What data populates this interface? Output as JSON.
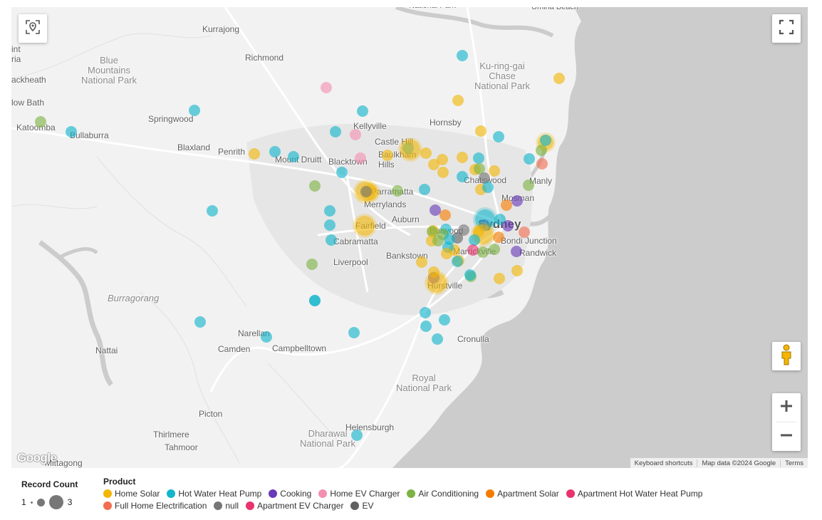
{
  "map": {
    "places": [
      {
        "name": "National Park",
        "cls": "sm"
      },
      {
        "name": "Umina Beach",
        "cls": "sm"
      },
      {
        "name": "Kurrajong",
        "cls": ""
      },
      {
        "name": "Richmond",
        "cls": ""
      },
      {
        "name": "Blue\nMountains\nNational Park",
        "cls": "park"
      },
      {
        "name": "ackheath",
        "cls": ""
      },
      {
        "name": "low Bath",
        "cls": ""
      },
      {
        "name": "Katoomba",
        "cls": ""
      },
      {
        "name": "Bullaburra",
        "cls": ""
      },
      {
        "name": "Springwood",
        "cls": ""
      },
      {
        "name": "Blaxland",
        "cls": ""
      },
      {
        "name": "Penrith",
        "cls": ""
      },
      {
        "name": "Mount Druitt",
        "cls": ""
      },
      {
        "name": "Blacktown",
        "cls": ""
      },
      {
        "name": "Kellyville",
        "cls": ""
      },
      {
        "name": "Castle Hill",
        "cls": ""
      },
      {
        "name": "Baulkham\nHills",
        "cls": ""
      },
      {
        "name": "Hornsby",
        "cls": ""
      },
      {
        "name": "Ku-ring-gai\nChase\nNational Park",
        "cls": "park"
      },
      {
        "name": "Chatswood",
        "cls": ""
      },
      {
        "name": "Manly",
        "cls": ""
      },
      {
        "name": "Mosman",
        "cls": ""
      },
      {
        "name": "Parramatta",
        "cls": ""
      },
      {
        "name": "Merrylands",
        "cls": ""
      },
      {
        "name": "Auburn",
        "cls": ""
      },
      {
        "name": "Fairfield",
        "cls": ""
      },
      {
        "name": "Cabramatta",
        "cls": ""
      },
      {
        "name": "Sydney",
        "cls": "big"
      },
      {
        "name": "Burwood",
        "cls": ""
      },
      {
        "name": "Bondi Junction",
        "cls": ""
      },
      {
        "name": "Marrickville",
        "cls": ""
      },
      {
        "name": "Randwick",
        "cls": ""
      },
      {
        "name": "Bankstown",
        "cls": ""
      },
      {
        "name": "Liverpool",
        "cls": ""
      },
      {
        "name": "Hurstville",
        "cls": ""
      },
      {
        "name": "Burragorang",
        "cls": "water"
      },
      {
        "name": "Narellan",
        "cls": ""
      },
      {
        "name": "Camden",
        "cls": ""
      },
      {
        "name": "Campbelltown",
        "cls": ""
      },
      {
        "name": "Cronulla",
        "cls": ""
      },
      {
        "name": "Nattai",
        "cls": ""
      },
      {
        "name": "Royal\nNational Park",
        "cls": "park"
      },
      {
        "name": "Picton",
        "cls": ""
      },
      {
        "name": "Thirlmere",
        "cls": ""
      },
      {
        "name": "Tahmoor",
        "cls": ""
      },
      {
        "name": "Dharawal\nNational Park",
        "cls": "park"
      },
      {
        "name": "Helensburgh",
        "cls": ""
      },
      {
        "name": "Mittagong",
        "cls": ""
      },
      {
        "name": "int\nria",
        "cls": ""
      }
    ],
    "attribution": [
      "Keyboard shortcuts",
      "Map data ©2024 Google",
      "Terms"
    ],
    "google_logo": "Google"
  },
  "icons": {
    "locate": "location-pin-icon",
    "fullscreen": "fullscreen-icon",
    "pegman": "street-view-pegman-icon",
    "zoom_in": "plus-icon",
    "zoom_out": "minus-icon"
  },
  "colors": {
    "Home Solar": "#f2b705",
    "Hot Water Heat Pump": "#12b5cb",
    "Cooking": "#673ab7",
    "Home EV Charger": "#f48fb1",
    "Air Conditioning": "#7cb342",
    "Apartment Solar": "#f57c00",
    "Apartment Hot Water Heat Pump": "#e8336d",
    "Full Home Electrification": "#f26d4f",
    "null": "#757575",
    "EV": "#616161"
  },
  "points": [
    {
      "p": "Hot Water Heat Pump",
      "c": 1
    },
    {
      "p": "Home EV Charger",
      "c": 1
    },
    {
      "p": "Home Solar",
      "c": 1
    },
    {
      "p": "Home Solar",
      "c": 1
    },
    {
      "p": "Hot Water Heat Pump",
      "c": 1
    },
    {
      "p": "Air Conditioning",
      "c": 1
    },
    {
      "p": "Hot Water Heat Pump",
      "c": 1
    },
    {
      "p": "Hot Water Heat Pump",
      "c": 1
    },
    {
      "p": "Hot Water Heat Pump",
      "c": 1
    },
    {
      "p": "Hot Water Heat Pump",
      "c": 1
    },
    {
      "p": "Home EV Charger",
      "c": 1
    },
    {
      "p": "Home Solar",
      "c": 1
    },
    {
      "p": "Hot Water Heat Pump",
      "c": 1
    },
    {
      "p": "Hot Water Heat Pump",
      "c": 1
    },
    {
      "p": "Home EV Charger",
      "c": 1
    },
    {
      "p": "Home Solar",
      "c": 2
    },
    {
      "p": "Hot Water Heat Pump",
      "c": 1
    },
    {
      "p": "Home Solar",
      "c": 1
    },
    {
      "p": "Home Solar",
      "c": 1
    },
    {
      "p": "Air Conditioning",
      "c": 1
    },
    {
      "p": "Hot Water Heat Pump",
      "c": 1
    },
    {
      "p": "Home Solar",
      "c": 3
    },
    {
      "p": "null",
      "c": 1
    },
    {
      "p": "Air Conditioning",
      "c": 1
    },
    {
      "p": "Hot Water Heat Pump",
      "c": 1
    },
    {
      "p": "Home Solar",
      "c": 3
    },
    {
      "p": "Hot Water Heat Pump",
      "c": 1
    },
    {
      "p": "Hot Water Heat Pump",
      "c": 1
    },
    {
      "p": "Air Conditioning",
      "c": 1
    },
    {
      "p": "Hot Water Heat Pump",
      "c": 1
    },
    {
      "p": "Hot Water Heat Pump",
      "c": 1
    },
    {
      "p": "Home Solar",
      "c": 1
    },
    {
      "p": "Home Solar",
      "c": 1
    },
    {
      "p": "Home Solar",
      "c": 1
    },
    {
      "p": "Home Solar",
      "c": 1
    },
    {
      "p": "Hot Water Heat Pump",
      "c": 1
    },
    {
      "p": "Home Solar",
      "c": 1
    },
    {
      "p": "Home Solar",
      "c": 1
    },
    {
      "p": "Home Solar",
      "c": 1
    },
    {
      "p": "Hot Water Heat Pump",
      "c": 1
    },
    {
      "p": "Air Conditioning",
      "c": 1
    },
    {
      "p": "null",
      "c": 1
    },
    {
      "p": "Home Solar",
      "c": 1
    },
    {
      "p": "Apartment Solar",
      "c": 1
    },
    {
      "p": "Hot Water Heat Pump",
      "c": 1
    },
    {
      "p": "Hot Water Heat Pump",
      "c": 1
    },
    {
      "p": "Hot Water Heat Pump",
      "c": 1
    },
    {
      "p": "Home Solar",
      "c": 2
    },
    {
      "p": "Hot Water Heat Pump",
      "c": 1
    },
    {
      "p": "Air Conditioning",
      "c": 1
    },
    {
      "p": "Full Home Electrification",
      "c": 1
    },
    {
      "p": "Air Conditioning",
      "c": 1
    },
    {
      "p": "Hot Water Heat Pump",
      "c": 1
    },
    {
      "p": "Cooking",
      "c": 1
    },
    {
      "p": "Apartment Solar",
      "c": 1
    },
    {
      "p": "Hot Water Heat Pump",
      "c": 1
    },
    {
      "p": "Cooking",
      "c": 1
    },
    {
      "p": "Hot Water Heat Pump",
      "c": 3
    },
    {
      "p": "Cooking",
      "c": 1
    },
    {
      "p": "Home Solar",
      "c": 1
    },
    {
      "p": "Apartment Solar",
      "c": 1
    },
    {
      "p": "Cooking",
      "c": 1
    },
    {
      "p": "Home Solar",
      "c": 1
    },
    {
      "p": "Home Solar",
      "c": 3
    },
    {
      "p": "Hot Water Heat Pump",
      "c": 1
    },
    {
      "p": "Air Conditioning",
      "c": 1
    },
    {
      "p": "null",
      "c": 1
    },
    {
      "p": "EV",
      "c": 1
    },
    {
      "p": "Air Conditioning",
      "c": 1
    },
    {
      "p": "Hot Water Heat Pump",
      "c": 1
    },
    {
      "p": "Full Home Electrification",
      "c": 1
    },
    {
      "p": "Home Solar",
      "c": 1
    },
    {
      "p": "Air Conditioning",
      "c": 1
    },
    {
      "p": "Apartment Hot Water Heat Pump",
      "c": 1
    },
    {
      "p": "Air Conditioning",
      "c": 1
    },
    {
      "p": "Cooking",
      "c": 1
    },
    {
      "p": "Home Solar",
      "c": 1
    },
    {
      "p": "Home Solar",
      "c": 1
    },
    {
      "p": "Hot Water Heat Pump",
      "c": 1
    },
    {
      "p": "Hot Water Heat Pump",
      "c": 1
    },
    {
      "p": "Home Solar",
      "c": 1
    },
    {
      "p": "Hot Water Heat Pump",
      "c": 1
    },
    {
      "p": "Air Conditioning",
      "c": 1
    },
    {
      "p": "Air Conditioning",
      "c": 1
    },
    {
      "p": "Hot Water Heat Pump",
      "c": 1
    },
    {
      "p": "Home Solar",
      "c": 1
    },
    {
      "p": "Cooking",
      "c": 1
    },
    {
      "p": "Hot Water Heat Pump",
      "c": 1
    },
    {
      "p": "Home Solar",
      "c": 3
    },
    {
      "p": "Hot Water Heat Pump",
      "c": 1
    },
    {
      "p": "Hot Water Heat Pump",
      "c": 1
    },
    {
      "p": "Hot Water Heat Pump",
      "c": 1
    },
    {
      "p": "Hot Water Heat Pump",
      "c": 1
    },
    {
      "p": "Hot Water Heat Pump",
      "c": 1
    },
    {
      "p": "Hot Water Heat Pump",
      "c": 1
    },
    {
      "p": "Home Solar",
      "c": 1
    },
    {
      "p": "Home Solar",
      "c": 1
    },
    {
      "p": "Home Solar",
      "c": 1
    },
    {
      "p": "Home Solar",
      "c": 3
    },
    {
      "p": "Hot Water Heat Pump",
      "c": 1
    }
  ],
  "legend": {
    "record_count": {
      "title": "Record Count",
      "min": "1",
      "max": "3"
    },
    "product": {
      "title": "Product",
      "items": [
        "Home Solar",
        "Hot Water Heat Pump",
        "Cooking",
        "Home EV Charger",
        "Air Conditioning",
        "Apartment Solar",
        "Apartment Hot Water Heat Pump",
        "Full Home Electrification",
        "null",
        "Apartment EV Charger",
        "EV"
      ],
      "item_colors": [
        "#f2b705",
        "#12b5cb",
        "#673ab7",
        "#f48fb1",
        "#7cb342",
        "#f57c00",
        "#e8336d",
        "#f26d4f",
        "#757575",
        "#e8336d",
        "#616161"
      ]
    }
  }
}
